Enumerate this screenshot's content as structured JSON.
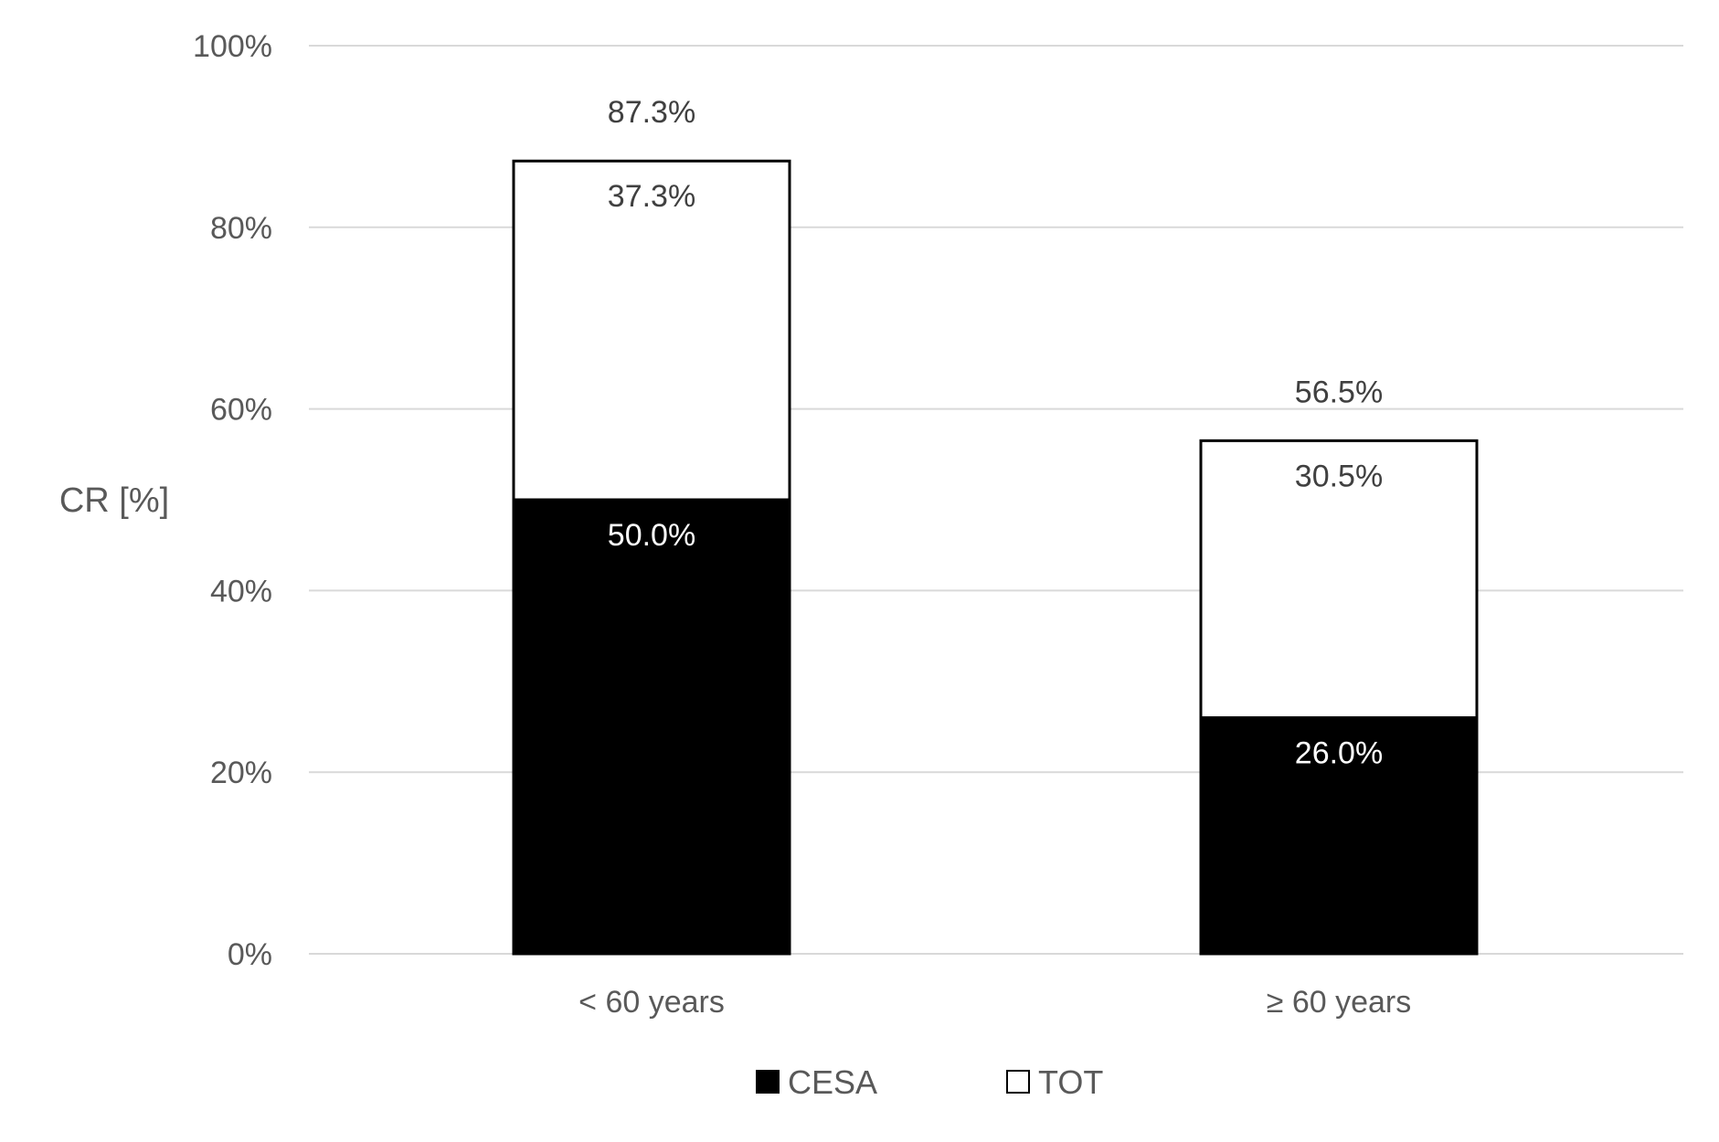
{
  "chart_data": {
    "type": "bar",
    "stacked": true,
    "ylabel": "CR [%]",
    "xlabel": "",
    "ylim": [
      0,
      100
    ],
    "yticks": [
      "0%",
      "20%",
      "40%",
      "60%",
      "80%",
      "100%"
    ],
    "grid": true,
    "legend_position": "bottom",
    "categories": [
      "< 60 years",
      "≥ 60 years"
    ],
    "series": [
      {
        "name": "CESA",
        "values": [
          50.0,
          26.0
        ],
        "labels": [
          "50.0%",
          "26.0%"
        ],
        "color": "#000000",
        "label_color": "#ffffff"
      },
      {
        "name": "TOT",
        "values": [
          37.3,
          30.5
        ],
        "labels": [
          "37.3%",
          "30.5%"
        ],
        "color": "#ffffff",
        "label_color": "#404040"
      }
    ],
    "totals": [
      87.3,
      56.5
    ],
    "total_labels": [
      "87.3%",
      "56.5%"
    ]
  },
  "colors": {
    "grid": "#d9d9d9",
    "axis_text": "#595959",
    "bar_outline": "#000000"
  }
}
